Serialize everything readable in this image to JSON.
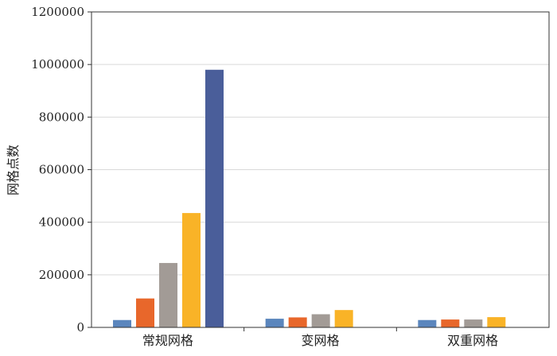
{
  "chart_data": {
    "type": "bar",
    "categories": [
      "常规网格",
      "变网格",
      "双重网格"
    ],
    "ylabel": "网格点数",
    "xlabel": "",
    "ylim": [
      0,
      1200000
    ],
    "yticks": [
      0,
      200000,
      400000,
      600000,
      800000,
      1000000,
      1200000
    ],
    "ytick_labels": [
      "0",
      "200000",
      "400000",
      "600000",
      "800000",
      "1000000",
      "1200000"
    ],
    "grid": true,
    "legend": "none",
    "series": [
      {
        "color": "#5b86bd",
        "values": [
          28000,
          33000,
          28000
        ]
      },
      {
        "color": "#e8672b",
        "values": [
          110000,
          38000,
          30000
        ]
      },
      {
        "color": "#a29b96",
        "values": [
          245000,
          50000,
          30000
        ]
      },
      {
        "color": "#f9b327",
        "values": [
          435000,
          66000,
          39000
        ]
      },
      {
        "color": "#4a5e9a",
        "values": [
          980000,
          null,
          null
        ]
      }
    ]
  }
}
